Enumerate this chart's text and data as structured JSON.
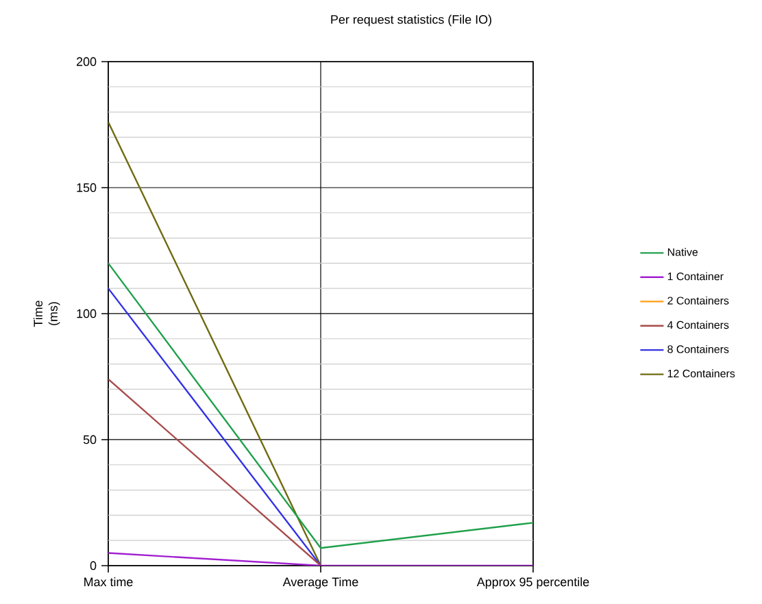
{
  "chart_data": {
    "type": "line",
    "title": "Per request statistics (File IO)",
    "ylabel": "Time (ms)",
    "categories": [
      "Max time",
      "Average Time",
      "Approx 95 percentile"
    ],
    "series": [
      {
        "name": "Native",
        "color": "#1fa04a",
        "values": [
          120,
          7,
          17
        ]
      },
      {
        "name": "1 Container",
        "color": "#a21fd0",
        "values": [
          5,
          0,
          0
        ]
      },
      {
        "name": "2 Containers",
        "color": "#ffa726",
        "values": [
          null,
          null,
          null
        ]
      },
      {
        "name": "4 Containers",
        "color": "#a84a4a",
        "values": [
          74,
          0,
          null
        ]
      },
      {
        "name": "8 Containers",
        "color": "#3232e6",
        "values": [
          110,
          0,
          null
        ]
      },
      {
        "name": "12 Containers",
        "color": "#6e6a10",
        "values": [
          176,
          0,
          null
        ]
      }
    ],
    "ylim": [
      0,
      200
    ],
    "yticks": [
      0,
      {
        "value": 10,
        "label": null
      },
      {
        "value": 20,
        "label": null
      },
      {
        "value": 30,
        "label": null
      },
      {
        "value": 40,
        "label": null
      },
      50,
      {
        "value": 60,
        "label": null
      },
      {
        "value": 70,
        "label": null
      },
      {
        "value": 80,
        "label": null
      },
      {
        "value": 90,
        "label": null
      },
      100,
      {
        "value": 110,
        "label": null
      },
      {
        "value": 120,
        "label": null
      },
      {
        "value": 130,
        "label": null
      },
      {
        "value": 140,
        "label": null
      },
      150,
      {
        "value": 160,
        "label": null
      },
      {
        "value": 170,
        "label": null
      },
      {
        "value": 180,
        "label": null
      },
      {
        "value": 190,
        "label": null
      },
      200
    ],
    "grid": true,
    "legend": "right",
    "marker": "none",
    "line_style": "solid"
  }
}
